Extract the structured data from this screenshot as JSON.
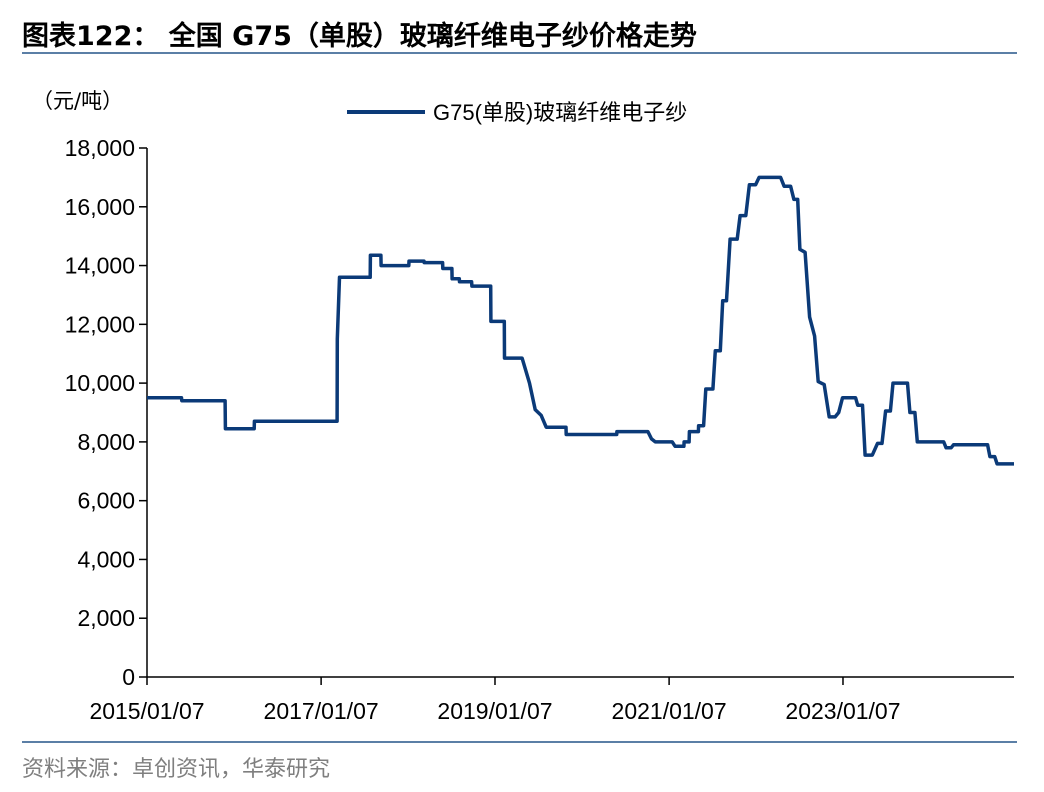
{
  "header": {
    "title": "图表122：  全国 G75（单股）玻璃纤维电子纱价格走势"
  },
  "footer": {
    "source": "资料来源：卓创资讯，华泰研究"
  },
  "colors": {
    "series": "#0b3a78",
    "rule": "#5b7fa6",
    "source_text": "#7f7f7f"
  },
  "chart_data": {
    "type": "line",
    "title": "",
    "ylabel": "（元/吨）",
    "xlabel": "",
    "ylim": [
      0,
      18000
    ],
    "yticks": [
      0,
      2000,
      4000,
      6000,
      8000,
      10000,
      12000,
      14000,
      16000,
      18000
    ],
    "ytick_labels": [
      "0",
      "2,000",
      "4,000",
      "6,000",
      "8,000",
      "10,000",
      "12,000",
      "14,000",
      "16,000",
      "18,000"
    ],
    "xlim": [
      "2015-01-07",
      "2024-12-25"
    ],
    "xticks": [
      "2015-01-07",
      "2017-01-07",
      "2019-01-07",
      "2021-01-07",
      "2023-01-07"
    ],
    "xtick_labels": [
      "2015/01/07",
      "2017/01/07",
      "2019/01/07",
      "2021/01/07",
      "2023/01/07"
    ],
    "grid": false,
    "legend_position": "top-center",
    "series": [
      {
        "name": "G75(单股)玻璃纤维电子纱",
        "points": [
          [
            "2015-01-07",
            9500
          ],
          [
            "2015-06-01",
            9500
          ],
          [
            "2015-06-02",
            9400
          ],
          [
            "2015-12-01",
            9400
          ],
          [
            "2015-12-02",
            8450
          ],
          [
            "2016-04-01",
            8450
          ],
          [
            "2016-04-02",
            8700
          ],
          [
            "2016-06-01",
            8700
          ],
          [
            "2016-12-01",
            8700
          ],
          [
            "2017-03-15",
            8700
          ],
          [
            "2017-03-16",
            11500
          ],
          [
            "2017-03-25",
            13600
          ],
          [
            "2017-08-01",
            13600
          ],
          [
            "2017-08-02",
            14350
          ],
          [
            "2017-09-15",
            14350
          ],
          [
            "2017-09-16",
            14000
          ],
          [
            "2018-01-10",
            14000
          ],
          [
            "2018-01-11",
            14150
          ],
          [
            "2018-03-15",
            14150
          ],
          [
            "2018-03-16",
            14100
          ],
          [
            "2018-06-01",
            14100
          ],
          [
            "2018-06-02",
            13900
          ],
          [
            "2018-07-10",
            13900
          ],
          [
            "2018-07-11",
            13550
          ],
          [
            "2018-08-10",
            13550
          ],
          [
            "2018-08-11",
            13450
          ],
          [
            "2018-10-01",
            13450
          ],
          [
            "2018-10-02",
            13300
          ],
          [
            "2018-12-20",
            13300
          ],
          [
            "2018-12-21",
            12100
          ],
          [
            "2019-02-15",
            12100
          ],
          [
            "2019-02-16",
            10850
          ],
          [
            "2019-05-01",
            10850
          ],
          [
            "2019-06-01",
            10000
          ],
          [
            "2019-06-25",
            9100
          ],
          [
            "2019-07-20",
            8900
          ],
          [
            "2019-08-10",
            8500
          ],
          [
            "2019-11-01",
            8500
          ],
          [
            "2019-11-02",
            8250
          ],
          [
            "2020-06-01",
            8250
          ],
          [
            "2020-06-02",
            8350
          ],
          [
            "2020-10-10",
            8350
          ],
          [
            "2020-10-25",
            8100
          ],
          [
            "2020-11-10",
            8000
          ],
          [
            "2021-01-20",
            8000
          ],
          [
            "2021-02-01",
            7850
          ],
          [
            "2021-03-10",
            7850
          ],
          [
            "2021-03-11",
            8000
          ],
          [
            "2021-04-01",
            8000
          ],
          [
            "2021-04-02",
            8350
          ],
          [
            "2021-05-10",
            8350
          ],
          [
            "2021-05-11",
            8550
          ],
          [
            "2021-06-01",
            8550
          ],
          [
            "2021-06-10",
            9800
          ],
          [
            "2021-07-10",
            9800
          ],
          [
            "2021-07-20",
            11100
          ],
          [
            "2021-08-10",
            11100
          ],
          [
            "2021-08-20",
            12800
          ],
          [
            "2021-09-05",
            12800
          ],
          [
            "2021-09-20",
            14900
          ],
          [
            "2021-10-20",
            14900
          ],
          [
            "2021-11-01",
            15700
          ],
          [
            "2021-11-25",
            15700
          ],
          [
            "2021-12-10",
            16750
          ],
          [
            "2022-01-05",
            16750
          ],
          [
            "2022-01-20",
            17000
          ],
          [
            "2022-04-20",
            17000
          ],
          [
            "2022-05-05",
            16700
          ],
          [
            "2022-06-01",
            16700
          ],
          [
            "2022-06-15",
            16250
          ],
          [
            "2022-07-01",
            16250
          ],
          [
            "2022-07-10",
            14550
          ],
          [
            "2022-08-01",
            14450
          ],
          [
            "2022-08-20",
            12250
          ],
          [
            "2022-09-10",
            11600
          ],
          [
            "2022-09-25",
            10050
          ],
          [
            "2022-10-20",
            9950
          ],
          [
            "2022-11-10",
            8850
          ],
          [
            "2022-12-05",
            8850
          ],
          [
            "2022-12-20",
            9000
          ],
          [
            "2023-01-05",
            9500
          ],
          [
            "2023-03-01",
            9500
          ],
          [
            "2023-03-10",
            9250
          ],
          [
            "2023-03-30",
            9250
          ],
          [
            "2023-04-10",
            7550
          ],
          [
            "2023-05-10",
            7550
          ],
          [
            "2023-06-01",
            7950
          ],
          [
            "2023-06-20",
            7950
          ],
          [
            "2023-07-05",
            9050
          ],
          [
            "2023-07-25",
            9050
          ],
          [
            "2023-08-05",
            10000
          ],
          [
            "2023-10-05",
            10000
          ],
          [
            "2023-10-15",
            9000
          ],
          [
            "2023-11-05",
            9000
          ],
          [
            "2023-11-15",
            8000
          ],
          [
            "2024-03-05",
            8000
          ],
          [
            "2024-03-15",
            7800
          ],
          [
            "2024-04-05",
            7800
          ],
          [
            "2024-04-15",
            7900
          ],
          [
            "2024-09-05",
            7900
          ],
          [
            "2024-09-15",
            7500
          ],
          [
            "2024-10-05",
            7500
          ],
          [
            "2024-10-15",
            7250
          ],
          [
            "2024-12-20",
            7250
          ],
          [
            "2024-12-25",
            7250
          ]
        ]
      }
    ]
  }
}
